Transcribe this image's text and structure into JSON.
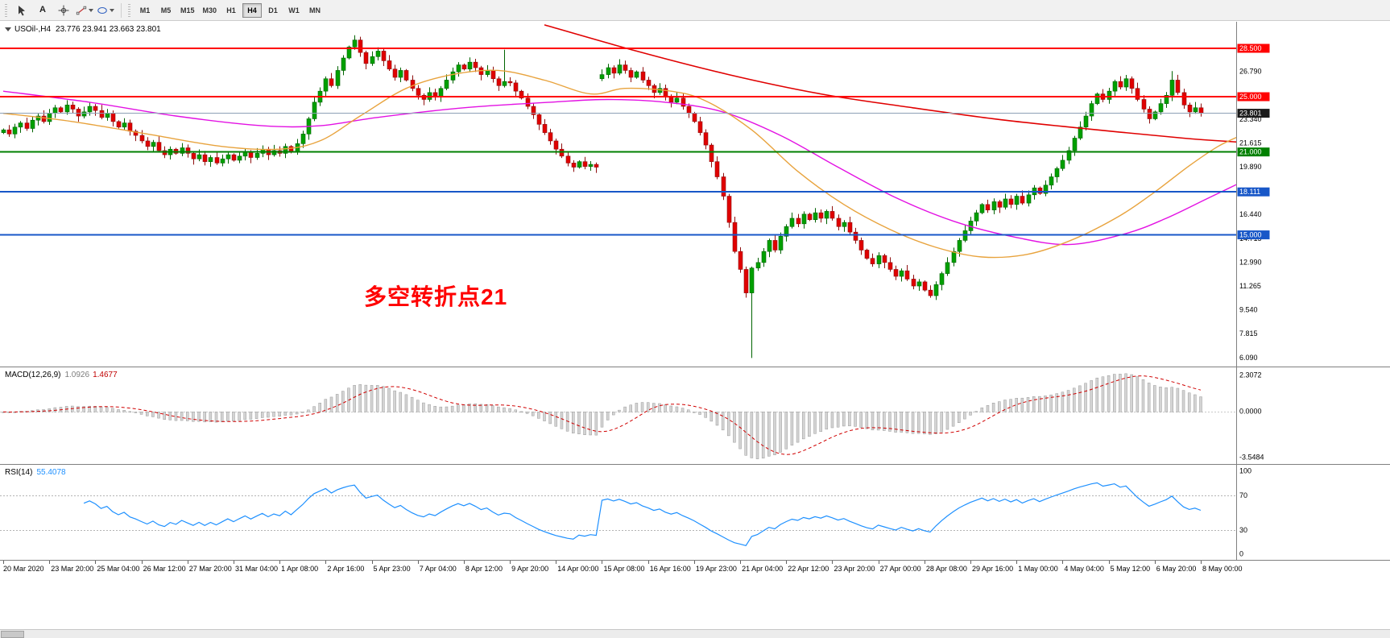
{
  "toolbar": {
    "icons": [
      {
        "name": "cursor-icon",
        "type": "cursor"
      },
      {
        "name": "text-tool-icon",
        "type": "text",
        "glyph": "A"
      },
      {
        "name": "crosshair-icon",
        "type": "crosshair"
      },
      {
        "name": "trendline-tool-icon",
        "type": "line",
        "has_caret": true
      },
      {
        "name": "shapes-tool-icon",
        "type": "shapes",
        "has_caret": true
      }
    ],
    "timeframes": [
      {
        "label": "M1"
      },
      {
        "label": "M5"
      },
      {
        "label": "M15"
      },
      {
        "label": "M30"
      },
      {
        "label": "H1"
      },
      {
        "label": "H4",
        "active": true
      },
      {
        "label": "D1"
      },
      {
        "label": "W1"
      },
      {
        "label": "MN"
      }
    ]
  },
  "chart": {
    "symbol_label": "USOil-,H4",
    "ohlc_label": "23.776 23.941 23.663 23.801",
    "current_price": "23.801",
    "annotation": {
      "text": "多空转折点21",
      "color": "#ff0000"
    }
  },
  "chart_data": {
    "type": "candlestick",
    "symbol": "USOil-",
    "timeframe": "H4",
    "title": "USOil-,H4 23.776 23.941 23.663 23.801",
    "x_labels": [
      "20 Mar 2020",
      "23 Mar 20:00",
      "25 Mar 04:00",
      "26 Mar 12:00",
      "27 Mar 20:00",
      "31 Mar 04:00",
      "1 Apr 08:00",
      "2 Apr 16:00",
      "5 Apr 23:00",
      "7 Apr 04:00",
      "8 Apr 12:00",
      "9 Apr 20:00",
      "14 Apr 00:00",
      "15 Apr 08:00",
      "16 Apr 16:00",
      "19 Apr 23:00",
      "21 Apr 04:00",
      "22 Apr 12:00",
      "23 Apr 20:00",
      "27 Apr 00:00",
      "28 Apr 08:00",
      "29 Apr 16:00",
      "1 May 00:00",
      "4 May 04:00",
      "5 May 12:00",
      "6 May 20:00",
      "8 May 00:00"
    ],
    "bars_per_label": 8,
    "open_first": 22.4,
    "closes": [
      22.6,
      22.3,
      22.8,
      23.1,
      22.7,
      23.3,
      23.6,
      23.2,
      23.8,
      24.2,
      23.9,
      24.4,
      24.1,
      23.6,
      23.9,
      24.3,
      24.0,
      23.5,
      23.8,
      23.2,
      22.8,
      23.1,
      22.5,
      22.2,
      21.8,
      21.4,
      21.7,
      21.1,
      20.8,
      21.2,
      20.9,
      21.3,
      20.9,
      20.5,
      20.8,
      20.3,
      20.6,
      20.2,
      20.5,
      20.8,
      20.4,
      20.7,
      21.0,
      20.6,
      20.9,
      21.2,
      20.8,
      21.1,
      20.9,
      21.4,
      21.0,
      21.6,
      22.3,
      23.4,
      24.6,
      25.4,
      26.3,
      25.8,
      26.9,
      27.8,
      28.6,
      29.1,
      28.2,
      27.4,
      27.9,
      28.3,
      27.6,
      27.0,
      26.4,
      26.9,
      26.2,
      25.6,
      25.1,
      24.8,
      25.3,
      25.0,
      25.6,
      26.2,
      26.8,
      27.3,
      27.0,
      27.5,
      27.1,
      26.6,
      26.9,
      26.3,
      25.8,
      26.1,
      26.0,
      25.4,
      24.9,
      24.3,
      23.7,
      23.0,
      22.4,
      21.8,
      21.2,
      20.7,
      20.2,
      19.9,
      20.3,
      19.95,
      20.1,
      19.9,
      26.6,
      27.1,
      26.7,
      27.3,
      26.9,
      26.4,
      26.8,
      26.2,
      25.8,
      25.3,
      25.6,
      25.0,
      24.6,
      24.9,
      24.3,
      23.8,
      23.2,
      22.4,
      21.5,
      20.3,
      19.2,
      17.8,
      15.9,
      13.8,
      12.5,
      10.8,
      12.6,
      13.0,
      13.8,
      14.6,
      13.9,
      14.9,
      15.6,
      16.2,
      15.8,
      16.5,
      16.1,
      16.6,
      16.2,
      16.7,
      16.2,
      15.6,
      15.9,
      15.2,
      14.6,
      13.9,
      13.3,
      12.9,
      13.5,
      13.0,
      12.5,
      12.0,
      12.4,
      11.8,
      11.3,
      11.6,
      11.0,
      10.6,
      11.4,
      12.2,
      13.0,
      13.8,
      14.6,
      15.3,
      16.0,
      16.6,
      17.2,
      16.8,
      17.4,
      17.0,
      17.6,
      17.2,
      17.8,
      17.3,
      17.9,
      18.4,
      18.0,
      18.6,
      19.2,
      19.8,
      20.4,
      21.1,
      22.0,
      22.8,
      23.6,
      24.5,
      25.2,
      24.8,
      25.4,
      26.1,
      25.7,
      26.3,
      25.6,
      24.8,
      24.1,
      23.4,
      23.9,
      24.5,
      25.1,
      26.2,
      25.3,
      24.4,
      23.9,
      24.2,
      23.801
    ],
    "wick_pattern": {
      "base": 0.1,
      "scale": 0.035,
      "mod": 10,
      "mult_high": 7,
      "mult_low": 13
    },
    "special_bars": {
      "61": {
        "high": 29.45
      },
      "87": {
        "high": 28.4
      },
      "104": {
        "open": 26.3
      },
      "130": {
        "low": 6.09
      },
      "161": {
        "low": 10.45
      },
      "203": {
        "high": 26.85
      }
    },
    "current_price": 23.801,
    "levels": [
      {
        "value": 28.5,
        "label": "28.500",
        "color": "#ff0000",
        "width": 2
      },
      {
        "value": 25.0,
        "label": "25.000",
        "color": "#ff0000",
        "width": 2
      },
      {
        "value": 21.0,
        "label": "21.000",
        "color": "#008000",
        "width": 2
      },
      {
        "value": 18.111,
        "label": "18.111",
        "color": "#1857c8",
        "width": 2
      },
      {
        "value": 15.0,
        "label": "15.000",
        "color": "#1857c8",
        "width": 2
      }
    ],
    "price_axis": {
      "grid_anchor": 6.09,
      "grid_step": 1.725,
      "decimals": 3
    },
    "overlays": {
      "ma_fast_orange": {
        "color": "#e8a33d",
        "points": [
          [
            0,
            23.8
          ],
          [
            12,
            23.2
          ],
          [
            25,
            22.3
          ],
          [
            38,
            21.4
          ],
          [
            48,
            21.2
          ],
          [
            55,
            21.8
          ],
          [
            62,
            23.6
          ],
          [
            70,
            25.6
          ],
          [
            78,
            26.6
          ],
          [
            86,
            26.9
          ],
          [
            94,
            26.2
          ],
          [
            102,
            25.2
          ],
          [
            108,
            25.6
          ],
          [
            116,
            25.4
          ],
          [
            122,
            24.7
          ],
          [
            130,
            22.6
          ],
          [
            138,
            19.6
          ],
          [
            146,
            17.2
          ],
          [
            154,
            15.4
          ],
          [
            162,
            14.1
          ],
          [
            170,
            13.4
          ],
          [
            178,
            13.6
          ],
          [
            186,
            14.7
          ],
          [
            194,
            16.4
          ],
          [
            200,
            18.1
          ],
          [
            206,
            20.0
          ],
          [
            211,
            21.4
          ],
          [
            215,
            22.2
          ]
        ]
      },
      "ma_slow_magenta": {
        "color": "#e312e3",
        "points": [
          [
            0,
            25.4
          ],
          [
            15,
            24.6
          ],
          [
            30,
            23.6
          ],
          [
            45,
            22.9
          ],
          [
            55,
            22.9
          ],
          [
            65,
            23.5
          ],
          [
            80,
            24.2
          ],
          [
            95,
            24.6
          ],
          [
            105,
            24.8
          ],
          [
            115,
            24.6
          ],
          [
            125,
            23.9
          ],
          [
            135,
            22.2
          ],
          [
            145,
            19.9
          ],
          [
            155,
            17.7
          ],
          [
            165,
            16.0
          ],
          [
            175,
            14.9
          ],
          [
            185,
            14.3
          ],
          [
            195,
            15.1
          ],
          [
            202,
            16.2
          ],
          [
            209,
            17.6
          ],
          [
            215,
            18.8
          ]
        ]
      },
      "ma_long_red": {
        "color": "#e00000",
        "points": [
          [
            94,
            30.2
          ],
          [
            110,
            28.3
          ],
          [
            126,
            26.6
          ],
          [
            142,
            25.2
          ],
          [
            158,
            24.2
          ],
          [
            174,
            23.3
          ],
          [
            190,
            22.6
          ],
          [
            205,
            22.0
          ],
          [
            215,
            21.7
          ]
        ]
      }
    },
    "indicators": {
      "macd": {
        "label": "MACD(12,26,9)",
        "value_main": "1.0926",
        "value_signal": "1.4677",
        "params": [
          12,
          26,
          9
        ],
        "ylim": [
          -3.5484,
          2.3072
        ],
        "axis_labels": [
          "2.3072",
          "0.0000",
          "-3.5484"
        ],
        "histogram_color": "#d4d4d4",
        "signal_color": "#d00000"
      },
      "rsi": {
        "label": "RSI(14)",
        "value": "55.4078",
        "period": 14,
        "levels": [
          70,
          30
        ],
        "ylim": [
          0,
          100
        ],
        "axis_labels": [
          "100",
          "70",
          "30",
          "0"
        ],
        "line_color": "#1e90ff"
      }
    }
  }
}
